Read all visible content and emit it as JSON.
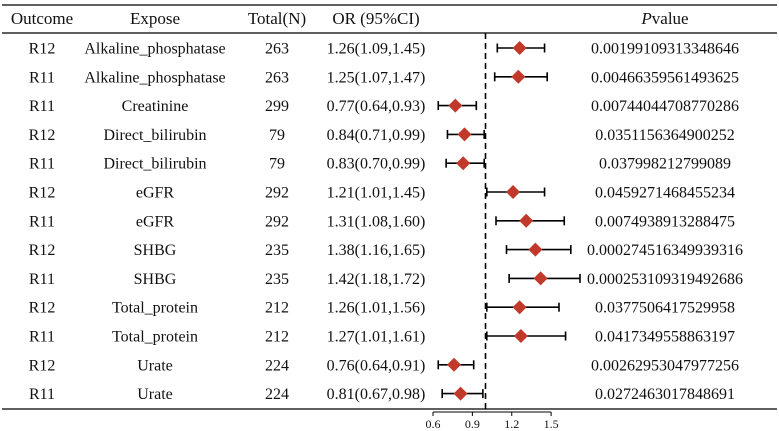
{
  "headers": {
    "outcome": "Outcome",
    "expose": "Expose",
    "total": "Total(N)",
    "or": "OR (95%CI)",
    "p_italic": "P",
    "p_rest": "value"
  },
  "chart_data": {
    "type": "forest",
    "reference_line": 1,
    "xlim": [
      0.6,
      1.72
    ],
    "x_ticks": [
      "0.6",
      "0.9",
      "1.2",
      "1.5"
    ],
    "x_tick_values": [
      0.6,
      0.9,
      1.2,
      1.5
    ],
    "marker_color": "#c0392b",
    "rows": [
      {
        "outcome": "R12",
        "expose": "Alkaline_phosphatase",
        "total": "263",
        "or_text": "1.26(1.09,1.45)",
        "or": 1.26,
        "lo": 1.09,
        "hi": 1.45,
        "p": "0.00199109313348646"
      },
      {
        "outcome": "R11",
        "expose": "Alkaline_phosphatase",
        "total": "263",
        "or_text": "1.25(1.07,1.47)",
        "or": 1.25,
        "lo": 1.07,
        "hi": 1.47,
        "p": "0.00466359561493625"
      },
      {
        "outcome": "R11",
        "expose": "Creatinine",
        "total": "299",
        "or_text": "0.77(0.64,0.93)",
        "or": 0.77,
        "lo": 0.64,
        "hi": 0.93,
        "p": "0.00744044708770286"
      },
      {
        "outcome": "R12",
        "expose": "Direct_bilirubin",
        "total": "79",
        "or_text": "0.84(0.71,0.99)",
        "or": 0.84,
        "lo": 0.71,
        "hi": 0.99,
        "p": "0.0351156364900252"
      },
      {
        "outcome": "R11",
        "expose": "Direct_bilirubin",
        "total": "79",
        "or_text": "0.83(0.70,0.99)",
        "or": 0.83,
        "lo": 0.7,
        "hi": 0.99,
        "p": "0.037998212799089"
      },
      {
        "outcome": "R12",
        "expose": "eGFR",
        "total": "292",
        "or_text": "1.21(1.01,1.45)",
        "or": 1.21,
        "lo": 1.01,
        "hi": 1.45,
        "p": "0.0459271468455234"
      },
      {
        "outcome": "R11",
        "expose": "eGFR",
        "total": "292",
        "or_text": "1.31(1.08,1.60)",
        "or": 1.31,
        "lo": 1.08,
        "hi": 1.6,
        "p": "0.0074938913288475"
      },
      {
        "outcome": "R12",
        "expose": "SHBG",
        "total": "235",
        "or_text": "1.38(1.16,1.65)",
        "or": 1.38,
        "lo": 1.16,
        "hi": 1.65,
        "p": "0.000274516349939316"
      },
      {
        "outcome": "R11",
        "expose": "SHBG",
        "total": "235",
        "or_text": "1.42(1.18,1.72)",
        "or": 1.42,
        "lo": 1.18,
        "hi": 1.72,
        "p": "0.000253109319492686"
      },
      {
        "outcome": "R12",
        "expose": "Total_protein",
        "total": "212",
        "or_text": "1.26(1.01,1.56)",
        "or": 1.26,
        "lo": 1.01,
        "hi": 1.56,
        "p": "0.0377506417529958"
      },
      {
        "outcome": "R11",
        "expose": "Total_protein",
        "total": "212",
        "or_text": "1.27(1.01,1.61)",
        "or": 1.27,
        "lo": 1.01,
        "hi": 1.61,
        "p": "0.0417349558863197"
      },
      {
        "outcome": "R12",
        "expose": "Urate",
        "total": "224",
        "or_text": "0.76(0.64,0.91)",
        "or": 0.76,
        "lo": 0.64,
        "hi": 0.91,
        "p": "0.00262953047977256"
      },
      {
        "outcome": "R11",
        "expose": "Urate",
        "total": "224",
        "or_text": "0.81(0.67,0.98)",
        "or": 0.81,
        "lo": 0.67,
        "hi": 0.98,
        "p": "0.0272463017848691"
      }
    ]
  }
}
